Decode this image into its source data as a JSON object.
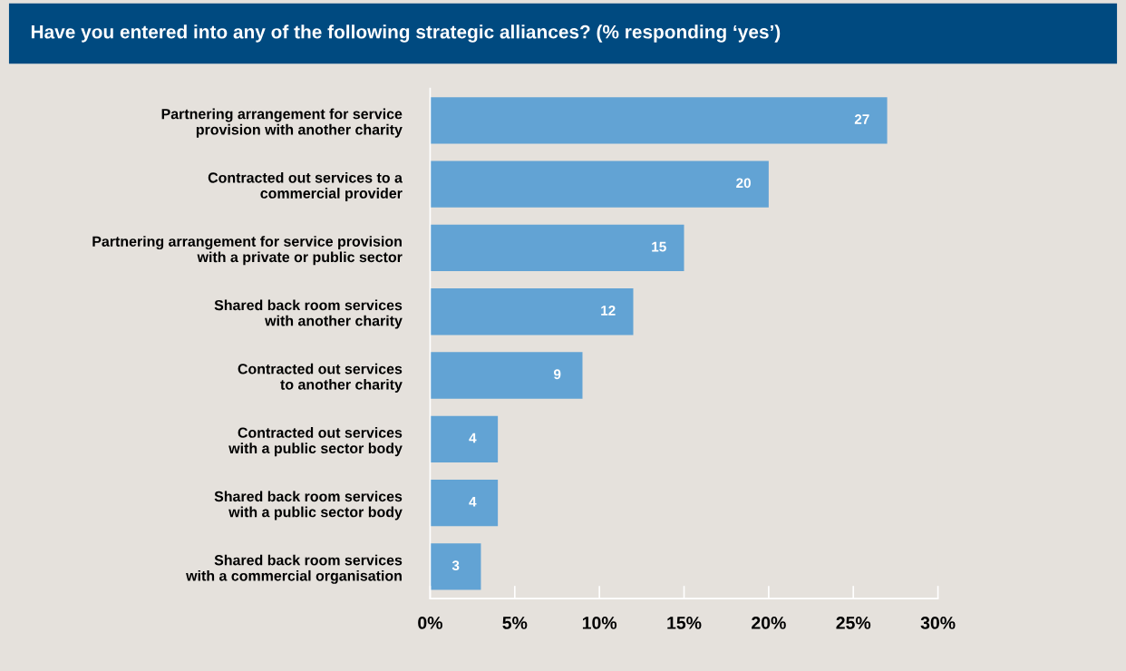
{
  "chart_data": {
    "type": "bar",
    "orientation": "horizontal",
    "title": "Have you entered into any of the following strategic alliances? (% responding ‘yes’)",
    "categories": [
      "Partnering arrangement for service\nprovision with another charity",
      "Contracted out services to a\ncommercial provider",
      "Partnering arrangement for service provision\nwith a private or public sector",
      "Shared back room services\nwith another charity",
      "Contracted out services\nto another charity",
      "Contracted out services\nwith a public sector body",
      "Shared back room services\nwith a public sector body",
      "Shared back room services\nwith a commercial organisation"
    ],
    "values": [
      27,
      20,
      15,
      12,
      9,
      4,
      4,
      3
    ],
    "color": "#62a3d4",
    "data_labels": true,
    "xlim": [
      0,
      30
    ],
    "xticks": [
      {
        "value": 0,
        "label": "0%"
      },
      {
        "value": 5,
        "label": "5%"
      },
      {
        "value": 10,
        "label": "10%"
      },
      {
        "value": 15,
        "label": "15%"
      },
      {
        "value": 20,
        "label": "20%"
      },
      {
        "value": 25,
        "label": "25%"
      },
      {
        "value": 30,
        "label": "30%"
      }
    ],
    "grid": false,
    "legend": false
  }
}
